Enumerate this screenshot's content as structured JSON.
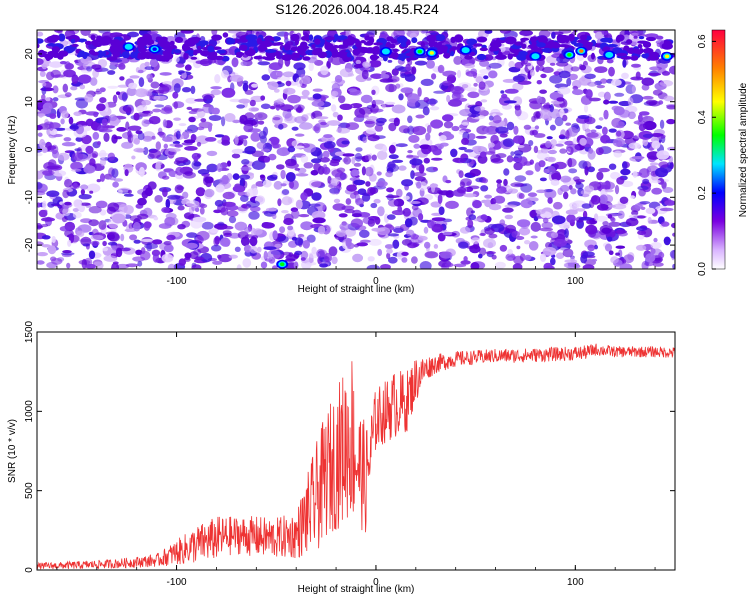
{
  "title": "S126.2026.004.18.45.R24",
  "chart_data": [
    {
      "type": "heatmap",
      "xlabel": "Height of straight line (km)",
      "ylabel": "Frequency (Hz)",
      "xlim": [
        -170,
        150
      ],
      "ylim": [
        -25,
        25
      ],
      "xticks": [
        -100,
        0,
        100
      ],
      "xtick_labels": [
        "-100",
        "0",
        "100"
      ],
      "yticks": [
        -20,
        -10,
        0,
        10,
        20
      ],
      "ytick_labels": [
        "-20",
        "-10",
        "0",
        "10",
        "20"
      ],
      "colorbar": {
        "label": "Normalized spectral amplitude",
        "range": [
          0.0,
          0.63
        ],
        "ticks": [
          0.0,
          0.2,
          0.4,
          0.6
        ],
        "tick_labels": [
          "0.0",
          "0.2",
          "0.4",
          "0.6"
        ],
        "colors": [
          "#ffffff",
          "#7a00e0",
          "#0000ff",
          "#00e5ff",
          "#00ff00",
          "#ffff00",
          "#ff8000",
          "#ff0040"
        ]
      },
      "hotspots": [
        {
          "x": -124,
          "y": 21.5,
          "v": 0.25
        },
        {
          "x": -111,
          "y": 21,
          "v": 0.22
        },
        {
          "x": 5,
          "y": 20.5,
          "v": 0.25
        },
        {
          "x": 22,
          "y": 20.5,
          "v": 0.4
        },
        {
          "x": 28,
          "y": 20.2,
          "v": 0.5
        },
        {
          "x": 45,
          "y": 20.8,
          "v": 0.25
        },
        {
          "x": 80,
          "y": 19.5,
          "v": 0.3
        },
        {
          "x": 97,
          "y": 19.8,
          "v": 0.4
        },
        {
          "x": 103,
          "y": 20.6,
          "v": 0.6
        },
        {
          "x": 117,
          "y": 19.8,
          "v": 0.3
        },
        {
          "x": 146,
          "y": 19.5,
          "v": 0.5
        },
        {
          "x": -47,
          "y": -24,
          "v": 0.35
        }
      ],
      "grid": false
    },
    {
      "type": "line",
      "xlabel": "Height of straight line (km)",
      "ylabel": "SNR (10 * v/v)",
      "xlim": [
        -170,
        150
      ],
      "ylim": [
        0,
        1500
      ],
      "xticks": [
        -100,
        0,
        100
      ],
      "xtick_labels": [
        "-100",
        "0",
        "100"
      ],
      "yticks": [
        0,
        500,
        1000,
        1500
      ],
      "ytick_labels": [
        "0",
        "500",
        "1000",
        "1500"
      ],
      "color": "#ee3333",
      "series": [
        {
          "x": [
            -170,
            -150,
            -130,
            -110,
            -100,
            -90,
            -80,
            -70,
            -60,
            -50,
            -40,
            -35,
            -30,
            -25,
            -20,
            -15,
            -12,
            -10,
            -5,
            0,
            5,
            10,
            15,
            20,
            25,
            30,
            40,
            50,
            60,
            70,
            80,
            90,
            100,
            105,
            110,
            120,
            130,
            140,
            150
          ],
          "y": [
            25,
            30,
            40,
            60,
            110,
            160,
            200,
            220,
            210,
            200,
            220,
            330,
            450,
            600,
            700,
            800,
            850,
            700,
            560,
            950,
            1000,
            1050,
            1050,
            1200,
            1270,
            1300,
            1330,
            1340,
            1350,
            1350,
            1355,
            1360,
            1365,
            1370,
            1390,
            1375,
            1375,
            1375,
            1370
          ],
          "noise": [
            20,
            25,
            30,
            40,
            80,
            120,
            140,
            120,
            130,
            130,
            150,
            250,
            350,
            400,
            450,
            500,
            550,
            400,
            350,
            200,
            200,
            220,
            200,
            150,
            80,
            60,
            50,
            45,
            45,
            45,
            45,
            45,
            45,
            45,
            40,
            35,
            35,
            35,
            35
          ]
        }
      ],
      "grid": false
    }
  ]
}
